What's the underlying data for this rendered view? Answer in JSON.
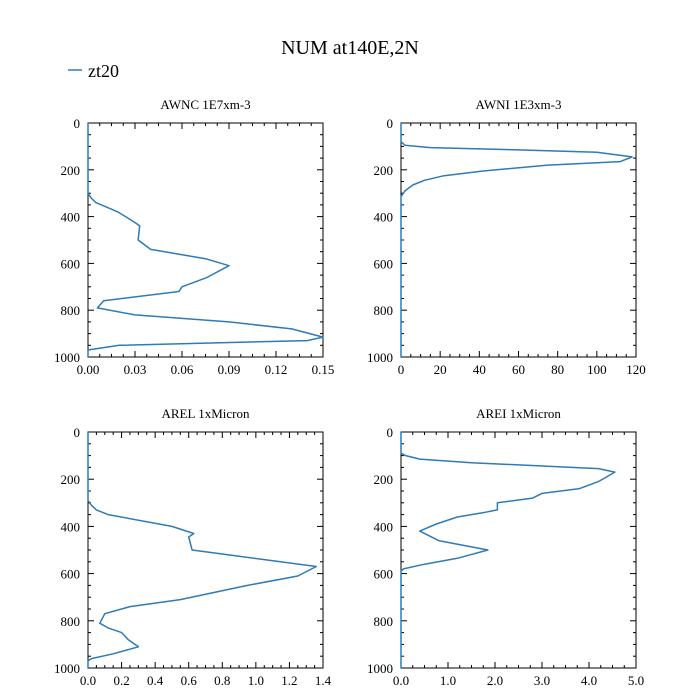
{
  "title": "NUM at140E,2N",
  "legend": {
    "label": "zt20",
    "color": "#2f7bb6"
  },
  "chart_data": [
    {
      "type": "line",
      "title": "AWNC  1E7xm-3",
      "xlim": [
        0,
        0.15
      ],
      "ylim": [
        1000,
        0
      ],
      "xticks": [
        0,
        0.03,
        0.06,
        0.09,
        0.12,
        0.15
      ],
      "xtick_labels": [
        "0.00",
        "0.03",
        "0.06",
        "0.09",
        "0.12",
        "0.15"
      ],
      "yticks": [
        0,
        200,
        400,
        600,
        800,
        1000
      ],
      "ytick_labels": [
        "0",
        "200",
        "400",
        "600",
        "800",
        "1000"
      ],
      "series": [
        {
          "name": "zt20",
          "x": [
            0,
            0,
            0.002,
            0.005,
            0.012,
            0.019,
            0.024,
            0.031,
            0.033,
            0.032,
            0.04,
            0.075,
            0.09,
            0.076,
            0.06,
            0.058,
            0.01,
            0.006,
            0.03,
            0.09,
            0.13,
            0.15,
            0.14,
            0.02,
            0,
            0
          ],
          "y": [
            0,
            300,
            320,
            340,
            360,
            380,
            400,
            430,
            440,
            500,
            540,
            580,
            610,
            660,
            700,
            720,
            760,
            790,
            820,
            850,
            880,
            915,
            930,
            950,
            970,
            1000
          ]
        }
      ]
    },
    {
      "type": "line",
      "title": "AWNI  1E3xm-3",
      "xlim": [
        0,
        120
      ],
      "ylim": [
        1000,
        0
      ],
      "xticks": [
        0,
        20,
        40,
        60,
        80,
        100,
        120
      ],
      "xtick_labels": [
        "0",
        "20",
        "40",
        "60",
        "80",
        "100",
        "120"
      ],
      "yticks": [
        0,
        200,
        400,
        600,
        800,
        1000
      ],
      "ytick_labels": [
        "0",
        "200",
        "400",
        "600",
        "800",
        "1000"
      ],
      "series": [
        {
          "name": "zt20",
          "x": [
            0,
            0,
            2,
            15,
            60,
            100,
            118,
            112,
            75,
            42,
            22,
            12,
            6,
            2,
            0,
            0
          ],
          "y": [
            0,
            80,
            95,
            105,
            115,
            125,
            145,
            165,
            180,
            205,
            225,
            245,
            265,
            290,
            315,
            1000
          ]
        }
      ]
    },
    {
      "type": "line",
      "title": "AREL  1xMicron",
      "xlim": [
        0,
        1.4
      ],
      "ylim": [
        1000,
        0
      ],
      "xticks": [
        0,
        0.2,
        0.4,
        0.6,
        0.8,
        1.0,
        1.2,
        1.4
      ],
      "xtick_labels": [
        "0.0",
        "0.2",
        "0.4",
        "0.6",
        "0.8",
        "1.0",
        "1.2",
        "1.4"
      ],
      "yticks": [
        0,
        200,
        400,
        600,
        800,
        1000
      ],
      "ytick_labels": [
        "0",
        "200",
        "400",
        "600",
        "800",
        "1000"
      ],
      "series": [
        {
          "name": "zt20",
          "x": [
            0,
            0,
            0.02,
            0.05,
            0.12,
            0.5,
            0.63,
            0.6,
            0.62,
            1.36,
            1.25,
            0.95,
            0.55,
            0.25,
            0.1,
            0.07,
            0.12,
            0.2,
            0.24,
            0.3,
            0.15,
            0.02,
            0,
            0
          ],
          "y": [
            0,
            290,
            310,
            330,
            350,
            400,
            430,
            445,
            500,
            570,
            610,
            650,
            710,
            740,
            770,
            810,
            830,
            850,
            880,
            910,
            940,
            960,
            970,
            1000
          ]
        }
      ]
    },
    {
      "type": "line",
      "title": "AREI  1xMicron",
      "xlim": [
        0,
        5.0
      ],
      "ylim": [
        1000,
        0
      ],
      "xticks": [
        0,
        1.0,
        2.0,
        3.0,
        4.0,
        5.0
      ],
      "xtick_labels": [
        "0.0",
        "1.0",
        "2.0",
        "3.0",
        "4.0",
        "5.0"
      ],
      "yticks": [
        0,
        200,
        400,
        600,
        800,
        1000
      ],
      "ytick_labels": [
        "0",
        "200",
        "400",
        "600",
        "800",
        "1000"
      ],
      "series": [
        {
          "name": "zt20",
          "x": [
            0,
            0,
            0.1,
            0.4,
            1.5,
            4.2,
            4.55,
            4.2,
            3.8,
            3.0,
            2.8,
            2.05,
            2.05,
            1.8,
            1.2,
            0.75,
            0.4,
            0.6,
            0.8,
            1.85,
            1.2,
            0.5,
            0.05,
            0,
            0
          ],
          "y": [
            0,
            90,
            100,
            115,
            130,
            155,
            170,
            210,
            240,
            260,
            280,
            300,
            330,
            340,
            360,
            390,
            420,
            440,
            460,
            500,
            535,
            560,
            580,
            590,
            1000
          ]
        }
      ]
    }
  ]
}
